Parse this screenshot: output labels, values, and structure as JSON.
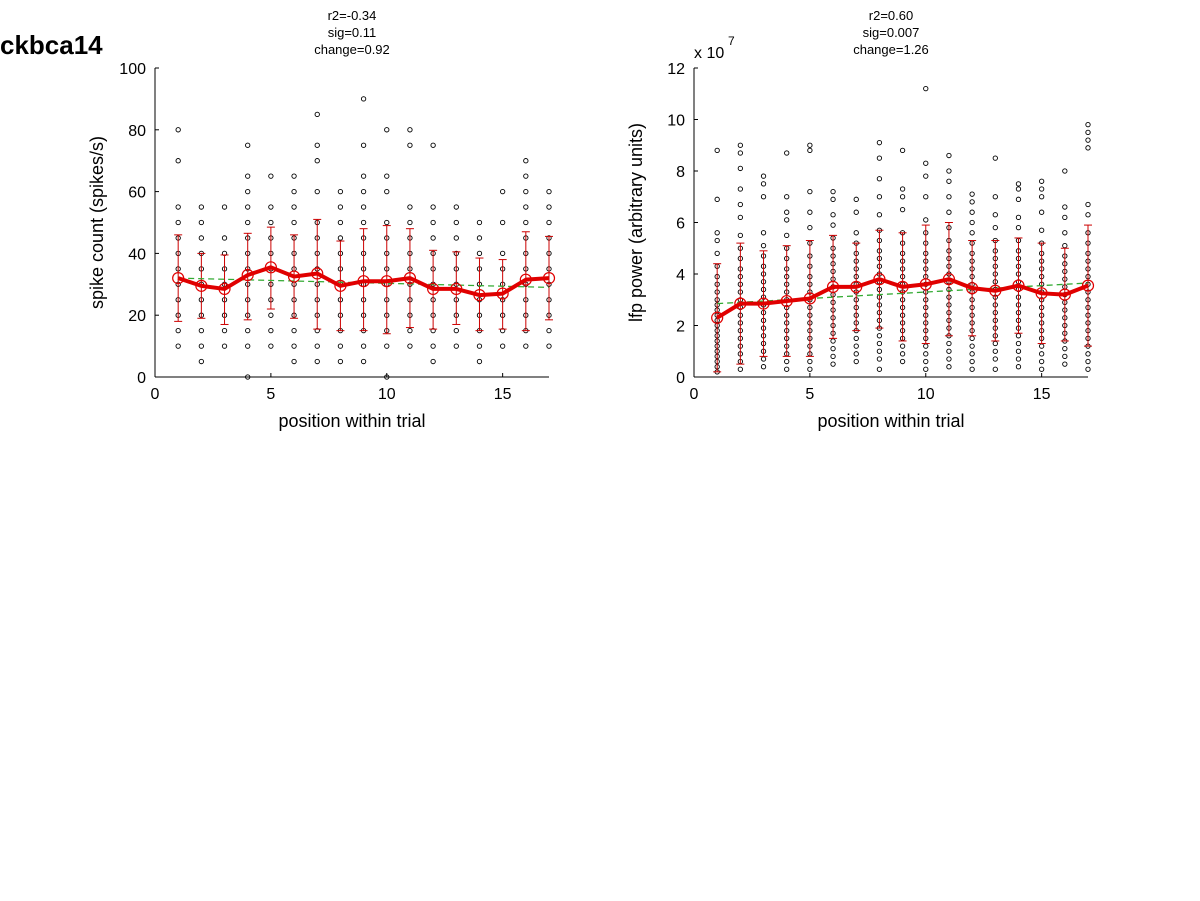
{
  "figure_title": "ckbca14",
  "colors": {
    "mean_line": "#e00000",
    "fit_line": "#33aa33",
    "error_bar": "#cc0000",
    "points": "#000000"
  },
  "chart_data": [
    {
      "type": "scatter",
      "title_lines": [
        "r2=-0.34",
        "sig=0.11",
        "change=0.92"
      ],
      "xlabel": "position within trial",
      "ylabel": "spike count (spikes/s)",
      "exponent_label": "",
      "xlim": [
        0,
        17
      ],
      "ylim": [
        0,
        100
      ],
      "xticks": [
        0,
        5,
        10,
        15
      ],
      "yticks": [
        0,
        20,
        40,
        60,
        80,
        100
      ],
      "grid": false,
      "x": [
        1,
        2,
        3,
        4,
        5,
        6,
        7,
        8,
        9,
        10,
        11,
        12,
        13,
        14,
        15,
        16,
        17
      ],
      "mean": [
        32,
        29.5,
        28.5,
        33,
        35.5,
        32.5,
        33.5,
        29.5,
        31,
        31,
        32,
        28.5,
        28.5,
        26.5,
        27,
        31.5,
        32
      ],
      "err_low": [
        18,
        19,
        17,
        18.5,
        22,
        19,
        15.5,
        15,
        15,
        14,
        16,
        15.5,
        17,
        15,
        15.5,
        15,
        18.5
      ],
      "err_high": [
        46,
        40,
        39.5,
        46.5,
        48.5,
        46,
        51,
        44,
        48,
        49,
        48,
        41,
        40.5,
        38.5,
        38,
        47,
        45.5
      ],
      "fit": {
        "x": [
          1,
          17
        ],
        "y": [
          32,
          29
        ]
      },
      "points": [
        [
          10,
          15,
          20,
          25,
          30,
          35,
          40,
          45,
          50,
          55,
          70,
          80
        ],
        [
          5,
          10,
          15,
          20,
          25,
          30,
          35,
          40,
          45,
          50,
          55
        ],
        [
          10,
          15,
          20,
          25,
          30,
          35,
          40,
          45,
          55
        ],
        [
          0,
          10,
          15,
          20,
          25,
          30,
          35,
          40,
          45,
          50,
          55,
          60,
          65,
          75
        ],
        [
          10,
          15,
          20,
          25,
          30,
          35,
          40,
          45,
          50,
          55,
          65
        ],
        [
          5,
          10,
          15,
          20,
          25,
          30,
          35,
          40,
          45,
          50,
          55,
          60,
          65
        ],
        [
          5,
          10,
          15,
          20,
          25,
          30,
          35,
          40,
          45,
          50,
          60,
          70,
          75,
          85
        ],
        [
          5,
          10,
          15,
          20,
          25,
          30,
          35,
          40,
          45,
          50,
          55,
          60
        ],
        [
          5,
          10,
          15,
          20,
          25,
          30,
          35,
          40,
          45,
          50,
          55,
          60,
          65,
          75,
          90
        ],
        [
          0,
          10,
          15,
          20,
          25,
          30,
          35,
          40,
          45,
          50,
          60,
          65,
          80
        ],
        [
          10,
          15,
          20,
          25,
          30,
          35,
          40,
          45,
          50,
          55,
          75,
          80
        ],
        [
          5,
          10,
          15,
          20,
          25,
          30,
          35,
          40,
          45,
          50,
          55,
          75
        ],
        [
          10,
          15,
          20,
          25,
          30,
          35,
          40,
          45,
          50,
          55
        ],
        [
          5,
          10,
          15,
          20,
          25,
          30,
          35,
          40,
          45,
          50
        ],
        [
          10,
          15,
          20,
          25,
          30,
          35,
          40,
          50,
          60
        ],
        [
          10,
          15,
          20,
          25,
          30,
          35,
          40,
          45,
          50,
          55,
          60,
          65,
          70
        ],
        [
          10,
          15,
          20,
          25,
          30,
          35,
          40,
          45,
          50,
          55,
          60
        ]
      ]
    },
    {
      "type": "scatter",
      "title_lines": [
        "r2=0.60",
        "sig=0.007",
        "change=1.26"
      ],
      "xlabel": "position within trial",
      "ylabel": "lfp power (arbitrary units)",
      "exponent_label": "x 10",
      "exponent_power": "7",
      "xlim": [
        0,
        17
      ],
      "ylim": [
        0,
        12
      ],
      "xticks": [
        0,
        5,
        10,
        15
      ],
      "yticks": [
        0,
        2,
        4,
        6,
        8,
        10,
        12
      ],
      "grid": false,
      "x": [
        1,
        2,
        3,
        4,
        5,
        6,
        7,
        8,
        9,
        10,
        11,
        12,
        13,
        14,
        15,
        16,
        17
      ],
      "mean": [
        2.3,
        2.85,
        2.85,
        2.95,
        3.05,
        3.5,
        3.5,
        3.8,
        3.5,
        3.6,
        3.8,
        3.45,
        3.35,
        3.55,
        3.25,
        3.2,
        3.55
      ],
      "err_low": [
        0.2,
        0.5,
        0.8,
        0.8,
        0.8,
        1.5,
        1.8,
        1.9,
        1.4,
        1.3,
        1.6,
        1.6,
        1.4,
        1.7,
        1.3,
        1.4,
        1.2
      ],
      "err_high": [
        4.4,
        5.2,
        4.9,
        5.1,
        5.3,
        5.5,
        5.2,
        5.7,
        5.6,
        5.9,
        6.0,
        5.3,
        5.3,
        5.4,
        5.2,
        5.0,
        5.9
      ],
      "fit": {
        "x": [
          1,
          17
        ],
        "y": [
          2.85,
          3.65
        ]
      },
      "points": [
        [
          0.2,
          0.4,
          0.6,
          0.8,
          1.0,
          1.2,
          1.4,
          1.6,
          1.8,
          2.0,
          2.2,
          2.4,
          2.6,
          2.8,
          3.0,
          3.3,
          3.6,
          3.9,
          4.3,
          4.8,
          5.3,
          5.6,
          6.9,
          8.8
        ],
        [
          0.3,
          0.6,
          0.9,
          1.2,
          1.5,
          1.8,
          2.1,
          2.4,
          2.7,
          3.0,
          3.3,
          3.6,
          3.9,
          4.2,
          4.6,
          5.0,
          5.5,
          6.2,
          6.7,
          7.3,
          8.1,
          8.7,
          9.0
        ],
        [
          0.4,
          0.7,
          1.0,
          1.3,
          1.6,
          1.9,
          2.2,
          2.5,
          2.8,
          3.1,
          3.4,
          3.7,
          4.0,
          4.3,
          4.7,
          5.1,
          5.6,
          7.0,
          7.5,
          7.8
        ],
        [
          0.3,
          0.6,
          0.9,
          1.2,
          1.5,
          1.8,
          2.1,
          2.4,
          2.7,
          3.0,
          3.3,
          3.6,
          3.9,
          4.2,
          4.6,
          5.0,
          5.5,
          6.1,
          6.4,
          7.0,
          8.7
        ],
        [
          0.3,
          0.6,
          0.9,
          1.2,
          1.5,
          1.8,
          2.1,
          2.4,
          2.7,
          3.0,
          3.3,
          3.6,
          3.9,
          4.3,
          4.7,
          5.2,
          5.8,
          6.4,
          7.2,
          8.8,
          9.0
        ],
        [
          0.5,
          0.8,
          1.1,
          1.4,
          1.7,
          2.0,
          2.3,
          2.6,
          2.9,
          3.2,
          3.5,
          3.8,
          4.1,
          4.4,
          4.7,
          5.0,
          5.4,
          5.9,
          6.3,
          6.9,
          7.2
        ],
        [
          0.6,
          0.9,
          1.2,
          1.5,
          1.8,
          2.1,
          2.4,
          2.7,
          3.0,
          3.3,
          3.6,
          3.9,
          4.2,
          4.5,
          4.8,
          5.2,
          5.6,
          6.4,
          6.9
        ],
        [
          0.3,
          0.7,
          1.0,
          1.3,
          1.6,
          1.9,
          2.2,
          2.5,
          2.8,
          3.1,
          3.4,
          3.7,
          4.0,
          4.3,
          4.6,
          4.9,
          5.3,
          5.7,
          6.3,
          7.0,
          7.7,
          8.5,
          9.1
        ],
        [
          0.6,
          0.9,
          1.2,
          1.5,
          1.8,
          2.1,
          2.4,
          2.7,
          3.0,
          3.3,
          3.6,
          3.9,
          4.2,
          4.5,
          4.8,
          5.2,
          5.6,
          6.5,
          7.0,
          7.3,
          8.8
        ],
        [
          0.3,
          0.6,
          0.9,
          1.2,
          1.5,
          1.8,
          2.1,
          2.4,
          2.7,
          3.0,
          3.3,
          3.6,
          3.9,
          4.2,
          4.5,
          4.8,
          5.2,
          5.6,
          6.1,
          7.0,
          7.8,
          8.3,
          11.2
        ],
        [
          0.4,
          0.7,
          1.0,
          1.3,
          1.6,
          1.9,
          2.2,
          2.5,
          2.8,
          3.1,
          3.4,
          3.7,
          4.0,
          4.3,
          4.6,
          4.9,
          5.3,
          5.8,
          6.4,
          7.0,
          7.6,
          8.0,
          8.6
        ],
        [
          0.3,
          0.6,
          0.9,
          1.2,
          1.5,
          1.8,
          2.1,
          2.4,
          2.7,
          3.0,
          3.3,
          3.6,
          3.9,
          4.2,
          4.5,
          4.8,
          5.2,
          5.6,
          6.0,
          6.4,
          6.8,
          7.1
        ],
        [
          0.3,
          0.7,
          1.0,
          1.3,
          1.6,
          1.9,
          2.2,
          2.5,
          2.8,
          3.1,
          3.4,
          3.7,
          4.0,
          4.3,
          4.6,
          4.9,
          5.3,
          5.8,
          6.3,
          7.0,
          8.5
        ],
        [
          0.4,
          0.7,
          1.0,
          1.3,
          1.6,
          1.9,
          2.2,
          2.5,
          2.8,
          3.1,
          3.4,
          3.7,
          4.0,
          4.3,
          4.6,
          4.9,
          5.3,
          5.8,
          6.2,
          6.9,
          7.3,
          7.5
        ],
        [
          0.3,
          0.6,
          0.9,
          1.2,
          1.5,
          1.8,
          2.1,
          2.4,
          2.7,
          3.0,
          3.3,
          3.6,
          3.9,
          4.2,
          4.5,
          4.8,
          5.2,
          5.7,
          6.4,
          7.0,
          7.3,
          7.6
        ],
        [
          0.5,
          0.8,
          1.1,
          1.4,
          1.7,
          2.0,
          2.3,
          2.6,
          2.9,
          3.2,
          3.5,
          3.8,
          4.1,
          4.4,
          4.7,
          5.1,
          5.6,
          6.2,
          6.6,
          8.0
        ],
        [
          0.3,
          0.6,
          0.9,
          1.2,
          1.5,
          1.8,
          2.1,
          2.4,
          2.7,
          3.0,
          3.3,
          3.6,
          3.9,
          4.2,
          4.5,
          4.8,
          5.2,
          5.6,
          6.3,
          6.7,
          8.9,
          9.2,
          9.5,
          9.8
        ]
      ]
    }
  ]
}
